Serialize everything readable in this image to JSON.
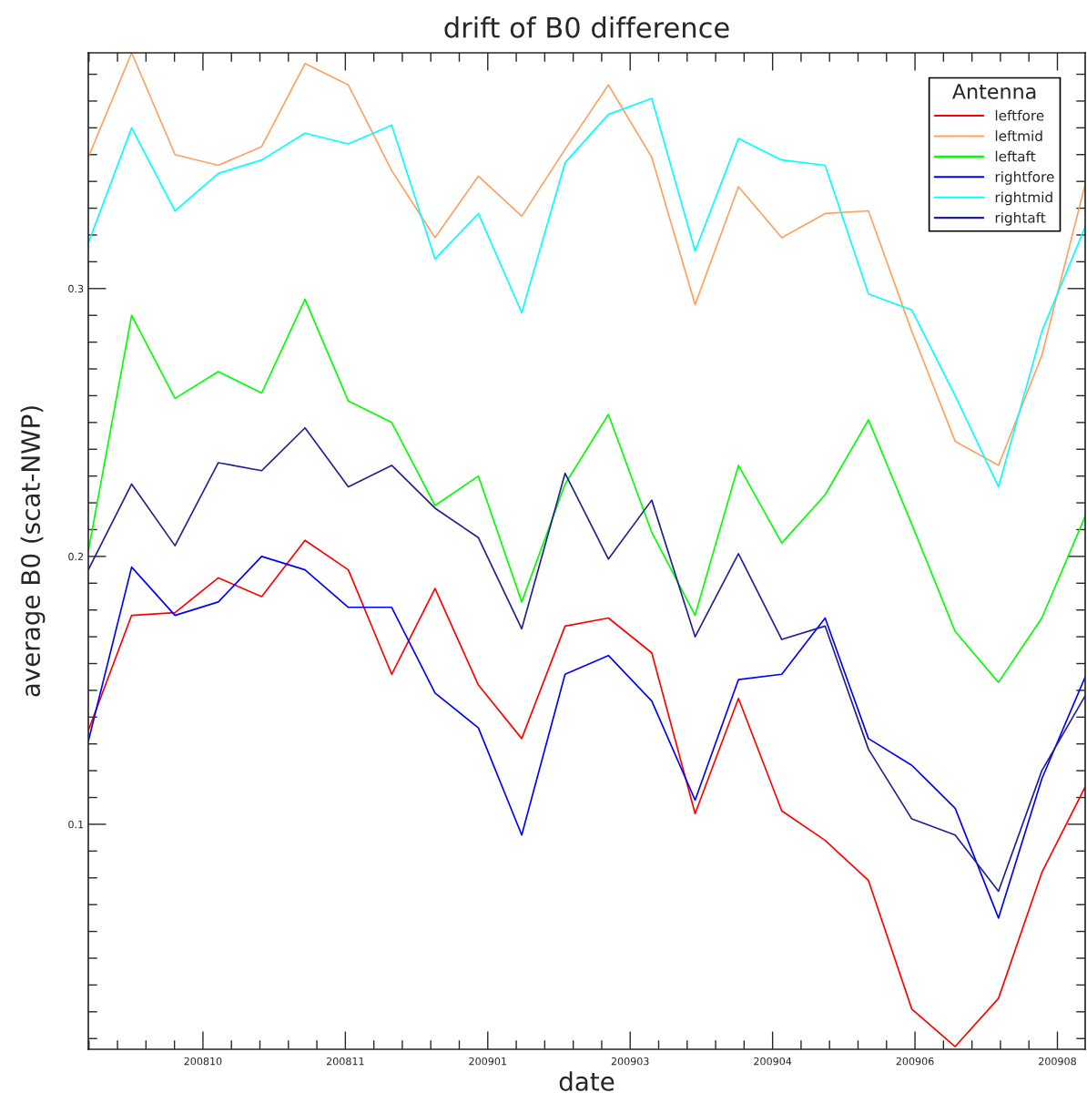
{
  "chart_data": {
    "type": "line",
    "title": "drift of B0 difference",
    "xlabel": "date",
    "ylabel": "average B0 (scat-NWP)",
    "legend_title": "Antenna",
    "legend": "top right",
    "grid": false,
    "categories": [
      null,
      null,
      null,
      null,
      null,
      null,
      null,
      null,
      null,
      null,
      null,
      null,
      null,
      null,
      null,
      null,
      null,
      null,
      null,
      null,
      null,
      null,
      null,
      null
    ],
    "annotations": [
      "200810",
      "200811",
      "200901",
      "200903",
      "200904",
      "200906",
      "200908"
    ],
    "ylim": [
      0.016,
      0.388
    ],
    "yticks": [
      {
        "value": 0.1,
        "label": "0.1"
      },
      {
        "value": 0.2,
        "label": "0.2"
      },
      {
        "value": 0.3,
        "label": "0.3"
      }
    ],
    "series": [
      {
        "name": "leftfore",
        "color": "#ff0000",
        "values": [
          0.135,
          0.178,
          0.179,
          0.192,
          0.185,
          0.206,
          0.195,
          0.156,
          0.188,
          0.152,
          0.132,
          0.174,
          0.177,
          0.164,
          0.104,
          0.147,
          0.105,
          0.094,
          0.079,
          0.031,
          0.017,
          0.035,
          0.082,
          0.114
        ]
      },
      {
        "name": "leftmid",
        "color": "#ffa060",
        "values": [
          0.349,
          0.388,
          0.35,
          0.346,
          0.353,
          0.384,
          0.376,
          0.344,
          0.319,
          0.342,
          0.327,
          0.352,
          0.376,
          0.349,
          0.294,
          0.338,
          0.319,
          0.328,
          0.329,
          0.284,
          0.243,
          0.234,
          0.275,
          0.339
        ]
      },
      {
        "name": "leftaft",
        "color": "#00ff00",
        "values": [
          0.202,
          0.29,
          0.259,
          0.269,
          0.261,
          0.296,
          0.258,
          0.25,
          0.219,
          0.23,
          0.183,
          0.227,
          0.253,
          0.209,
          0.178,
          0.234,
          0.205,
          0.223,
          0.251,
          0.212,
          0.172,
          0.153,
          0.177,
          0.215
        ]
      },
      {
        "name": "rightfore",
        "color": "#0000ff",
        "values": [
          0.131,
          0.196,
          0.178,
          0.183,
          0.2,
          0.195,
          0.181,
          0.181,
          0.149,
          0.136,
          0.096,
          0.156,
          0.163,
          0.146,
          0.109,
          0.154,
          0.156,
          0.177,
          0.132,
          0.122,
          0.106,
          0.065,
          0.117,
          0.155
        ]
      },
      {
        "name": "rightmid",
        "color": "#00ffff",
        "values": [
          0.317,
          0.36,
          0.329,
          0.343,
          0.348,
          0.358,
          0.354,
          0.361,
          0.311,
          0.328,
          0.291,
          0.347,
          0.365,
          0.371,
          0.314,
          0.356,
          0.348,
          0.346,
          0.298,
          0.292,
          0.26,
          0.226,
          0.284,
          0.323
        ]
      },
      {
        "name": "rightaft",
        "color": "#202090",
        "values": [
          0.195,
          0.227,
          0.204,
          0.235,
          0.232,
          0.248,
          0.226,
          0.234,
          0.218,
          0.207,
          0.173,
          0.231,
          0.199,
          0.221,
          0.17,
          0.201,
          0.169,
          0.174,
          0.128,
          0.102,
          0.096,
          0.075,
          0.12,
          0.148
        ]
      }
    ]
  }
}
